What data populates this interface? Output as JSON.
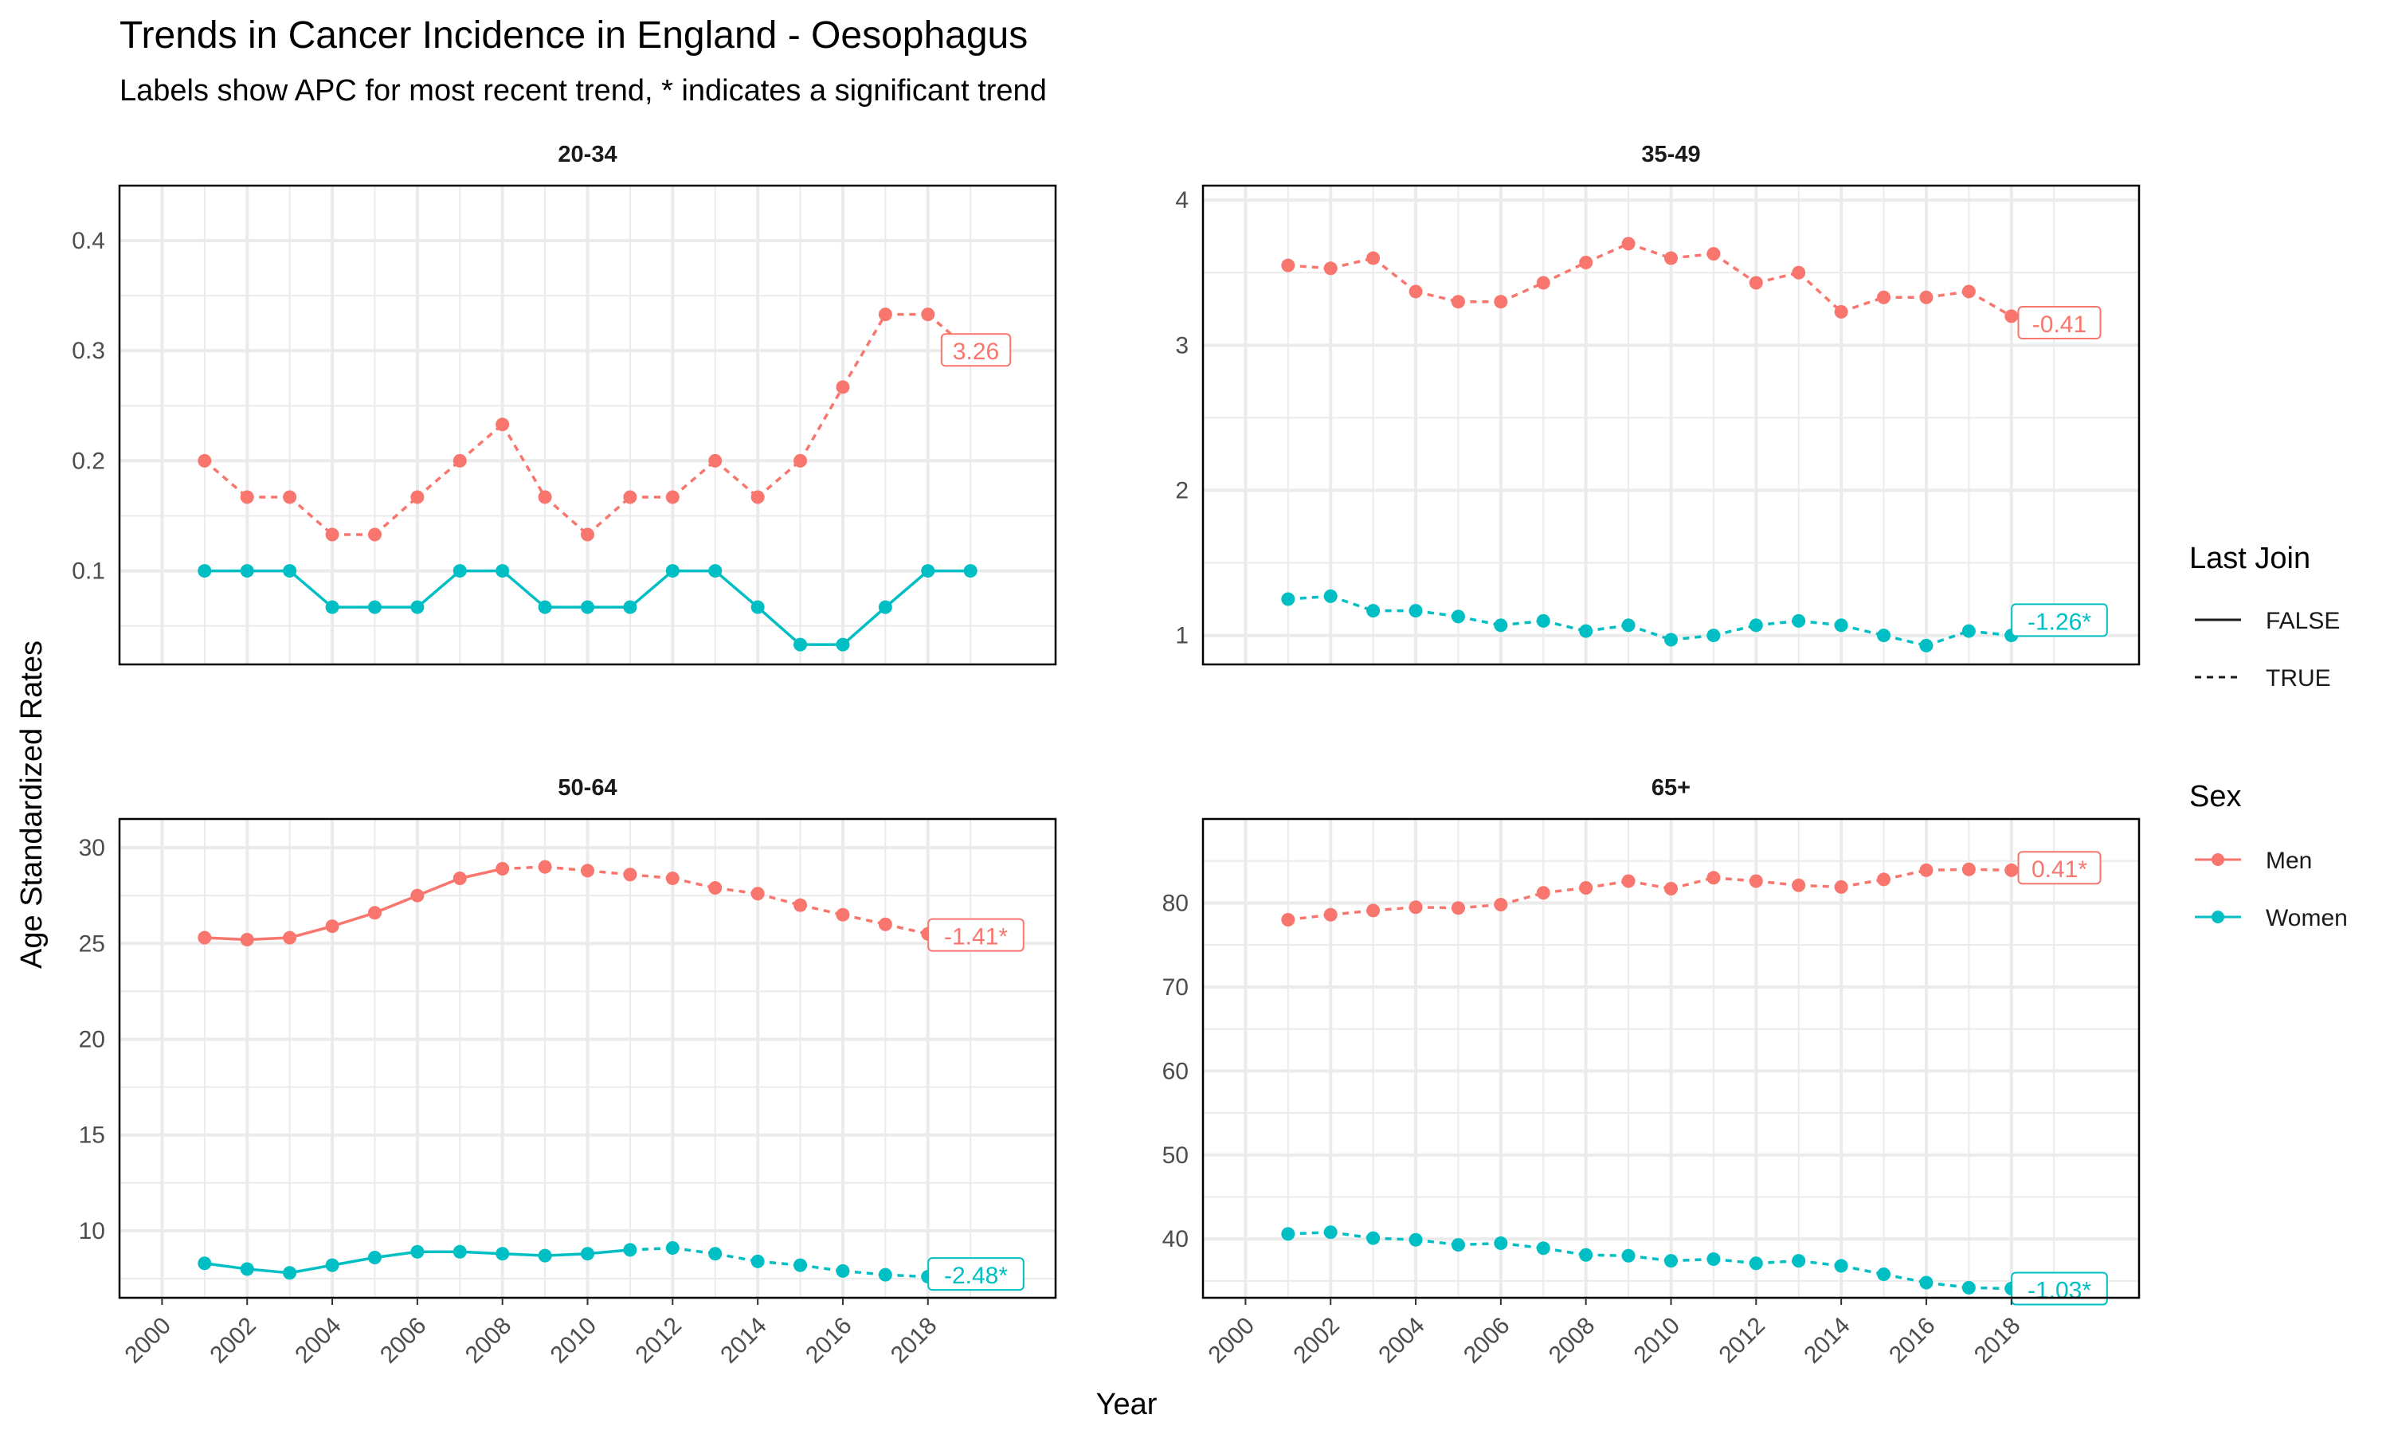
{
  "title": "Trends in Cancer Incidence in England - Oesophagus",
  "subtitle": "Labels show APC for most recent trend, * indicates a significant trend",
  "colors": {
    "men": "#F8766D",
    "women": "#00BFC4",
    "grid": "#ebebeb",
    "panel_border": "#000000"
  },
  "chart_data": {
    "type": "line",
    "xlabel": "Year",
    "ylabel": "Age Standardized Rates",
    "x_ticks": [
      2000,
      2002,
      2004,
      2006,
      2008,
      2010,
      2012,
      2014,
      2016,
      2018
    ],
    "x": [
      2001,
      2002,
      2003,
      2004,
      2005,
      2006,
      2007,
      2008,
      2009,
      2010,
      2011,
      2012,
      2013,
      2014,
      2015,
      2016,
      2017,
      2018,
      2019
    ],
    "legend": {
      "last_join": {
        "title": "Last Join",
        "items": [
          {
            "label": "FALSE",
            "linetype": "solid"
          },
          {
            "label": "TRUE",
            "linetype": "dashed"
          }
        ]
      },
      "sex": {
        "title": "Sex",
        "items": [
          {
            "label": "Men",
            "color": "#F8766D"
          },
          {
            "label": "Women",
            "color": "#00BFC4"
          }
        ]
      }
    },
    "panels": [
      {
        "label": "20-34",
        "ylim": [
          0.015,
          0.45
        ],
        "y_ticks": [
          0.1,
          0.2,
          0.3,
          0.4
        ],
        "y_tick_labels": [
          "0.1",
          "0.2",
          "0.3",
          "0.4"
        ],
        "series": [
          {
            "name": "Men",
            "color": "#F8766D",
            "values": [
              0.2,
              0.167,
              0.167,
              0.133,
              0.133,
              0.167,
              0.2,
              0.233,
              0.167,
              0.133,
              0.167,
              0.167,
              0.2,
              0.167,
              0.2,
              0.267,
              0.333,
              0.333,
              0.3
            ],
            "dashed_from_year": 2001,
            "apc_label": "3.26"
          },
          {
            "name": "Women",
            "color": "#00BFC4",
            "values": [
              0.1,
              0.1,
              0.1,
              0.067,
              0.067,
              0.067,
              0.1,
              0.1,
              0.067,
              0.067,
              0.067,
              0.1,
              0.1,
              0.067,
              0.033,
              0.033,
              0.067,
              0.1,
              0.1
            ],
            "dashed_from_year": null,
            "apc_label": null
          }
        ]
      },
      {
        "label": "35-49",
        "ylim": [
          0.8,
          4.1
        ],
        "y_ticks": [
          1,
          2,
          3,
          4
        ],
        "y_tick_labels": [
          "1",
          "2",
          "3",
          "4"
        ],
        "series": [
          {
            "name": "Men",
            "color": "#F8766D",
            "values": [
              3.55,
              3.53,
              3.6,
              3.37,
              3.3,
              3.3,
              3.43,
              3.57,
              3.7,
              3.6,
              3.63,
              3.43,
              3.5,
              3.23,
              3.33,
              3.33,
              3.37,
              3.2,
              3.15
            ],
            "dashed_from_year": 2001,
            "apc_label": "-0.41"
          },
          {
            "name": "Women",
            "color": "#00BFC4",
            "values": [
              1.25,
              1.27,
              1.17,
              1.17,
              1.13,
              1.07,
              1.1,
              1.03,
              1.07,
              0.97,
              1.0,
              1.07,
              1.1,
              1.07,
              1.0,
              0.93,
              1.03,
              1.0,
              1.1
            ],
            "dashed_from_year": 2001,
            "apc_label": "-1.26*"
          }
        ]
      },
      {
        "label": "50-64",
        "ylim": [
          6.5,
          31.5
        ],
        "y_ticks": [
          10,
          15,
          20,
          25,
          30
        ],
        "y_tick_labels": [
          "10",
          "15",
          "20",
          "25",
          "30"
        ],
        "series": [
          {
            "name": "Men",
            "color": "#F8766D",
            "values": [
              25.3,
              25.2,
              25.3,
              25.9,
              26.6,
              27.5,
              28.4,
              28.9,
              29.0,
              28.8,
              28.6,
              28.4,
              27.9,
              27.6,
              27.0,
              26.5,
              26.0,
              25.5,
              25.4
            ],
            "dashed_from_year": 2008,
            "apc_label": "-1.41*"
          },
          {
            "name": "Women",
            "color": "#00BFC4",
            "values": [
              8.3,
              8.0,
              7.8,
              8.2,
              8.6,
              8.9,
              8.9,
              8.8,
              8.7,
              8.8,
              9.0,
              9.1,
              8.8,
              8.4,
              8.2,
              7.9,
              7.7,
              7.6,
              7.7
            ],
            "dashed_from_year": 2011,
            "apc_label": "-2.48*"
          }
        ]
      },
      {
        "label": "65+",
        "ylim": [
          33,
          90
        ],
        "y_ticks": [
          40,
          50,
          60,
          70,
          80
        ],
        "y_tick_labels": [
          "40",
          "50",
          "60",
          "70",
          "80"
        ],
        "series": [
          {
            "name": "Men",
            "color": "#F8766D",
            "values": [
              78.0,
              78.6,
              79.1,
              79.5,
              79.4,
              79.8,
              81.2,
              81.8,
              82.6,
              81.7,
              83.0,
              82.6,
              82.1,
              81.9,
              82.8,
              83.9,
              84.0,
              83.9,
              84.1
            ],
            "dashed_from_year": 2001,
            "apc_label": "0.41*"
          },
          {
            "name": "Women",
            "color": "#00BFC4",
            "values": [
              40.6,
              40.8,
              40.1,
              39.9,
              39.3,
              39.5,
              38.9,
              38.1,
              38.0,
              37.4,
              37.6,
              37.1,
              37.4,
              36.8,
              35.8,
              34.8,
              34.2,
              34.1,
              34.0
            ],
            "dashed_from_year": 2001,
            "apc_label": "-1.03*"
          }
        ]
      }
    ]
  }
}
